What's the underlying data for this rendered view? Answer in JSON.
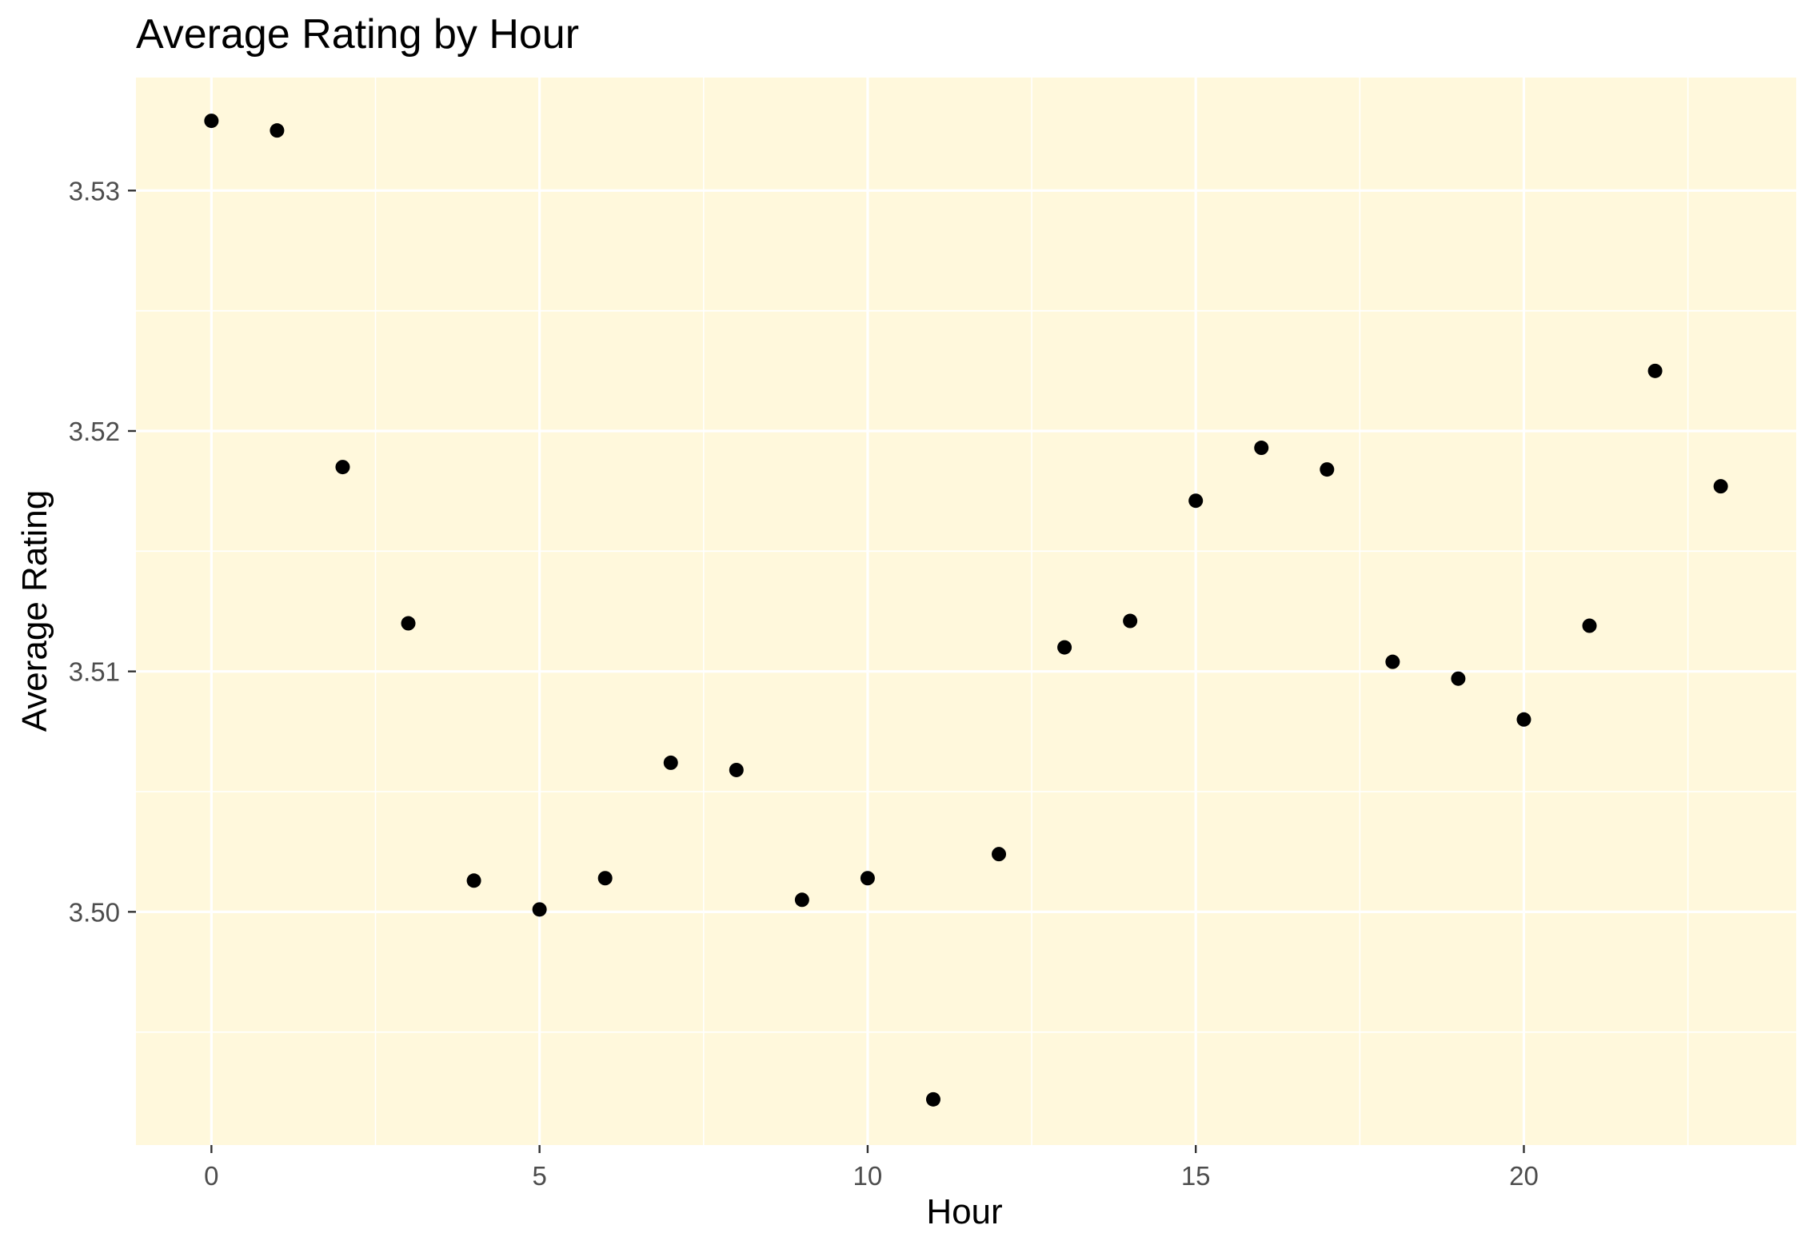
{
  "chart_data": {
    "type": "scatter",
    "title": "Average Rating by Hour",
    "xlabel": "Hour",
    "ylabel": "Average Rating",
    "x_ticks": [
      "0",
      "5",
      "10",
      "15",
      "20"
    ],
    "y_ticks": [
      "3.50",
      "3.51",
      "3.52",
      "3.53"
    ],
    "xlim": [
      -1.15,
      24.15
    ],
    "ylim": [
      3.4903,
      3.5347
    ],
    "grid": true,
    "legend": "none",
    "panel_background": "#fff8dc",
    "grid_color": "#ffffff",
    "point_color": "#000000",
    "series": [
      {
        "x": [
          0,
          1,
          2,
          3,
          4,
          5,
          6,
          7,
          8,
          9,
          10,
          11,
          12,
          13,
          14,
          15,
          16,
          17,
          18,
          19,
          20,
          21,
          22,
          23
        ],
        "y": [
          3.5329,
          3.5325,
          3.5185,
          3.512,
          3.5013,
          3.5001,
          3.5014,
          3.5062,
          3.5059,
          3.5005,
          3.5014,
          3.4922,
          3.5024,
          3.511,
          3.5121,
          3.5171,
          3.5193,
          3.5184,
          3.5104,
          3.5097,
          3.508,
          3.5119,
          3.5225,
          3.5177
        ]
      }
    ]
  }
}
